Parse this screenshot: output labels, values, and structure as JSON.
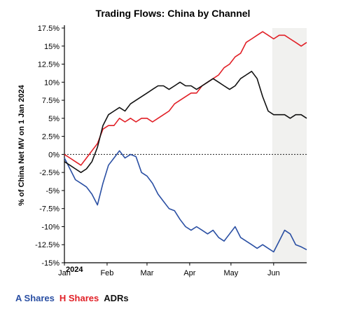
{
  "chart_data": {
    "type": "line",
    "title": "Trading Flows: China by Channel",
    "ylabel": "% of China Net MV on 1 Jan 2024",
    "xlabel": "",
    "year_note": "2024",
    "x_ticks": [
      "Jan",
      "Feb",
      "Mar",
      "Apr",
      "May",
      "Jun"
    ],
    "y_ticks": [
      "17.5%",
      "15%",
      "12.5%",
      "10%",
      "7.5%",
      "5%",
      "2.5%",
      "0%",
      "-2.5%",
      "-5%",
      "-7.5%",
      "-10%",
      "-12.5%",
      "-15%"
    ],
    "ylim": [
      -15,
      17.5
    ],
    "xlim": [
      "2024-01-01",
      "2024-06-25"
    ],
    "shaded_from": "2024-05-31",
    "zero_line": "dashed",
    "x": [
      "2024-01-01",
      "2024-01-05",
      "2024-01-09",
      "2024-01-13",
      "2024-01-17",
      "2024-01-21",
      "2024-01-25",
      "2024-01-29",
      "2024-02-02",
      "2024-02-06",
      "2024-02-10",
      "2024-02-14",
      "2024-02-18",
      "2024-02-22",
      "2024-02-26",
      "2024-03-01",
      "2024-03-05",
      "2024-03-09",
      "2024-03-13",
      "2024-03-17",
      "2024-03-21",
      "2024-03-25",
      "2024-03-29",
      "2024-04-02",
      "2024-04-06",
      "2024-04-10",
      "2024-04-14",
      "2024-04-18",
      "2024-04-22",
      "2024-04-26",
      "2024-04-30",
      "2024-05-04",
      "2024-05-08",
      "2024-05-12",
      "2024-05-16",
      "2024-05-20",
      "2024-05-24",
      "2024-05-28",
      "2024-06-01",
      "2024-06-05",
      "2024-06-09",
      "2024-06-13",
      "2024-06-17",
      "2024-06-21",
      "2024-06-25"
    ],
    "series": [
      {
        "name": "A Shares",
        "color": "#2a4fa3",
        "values": [
          -0.5,
          -2.0,
          -3.5,
          -4.0,
          -4.5,
          -5.5,
          -7.0,
          -4.0,
          -1.5,
          -0.5,
          0.5,
          -0.5,
          0.0,
          -0.3,
          -2.5,
          -3.0,
          -4.0,
          -5.5,
          -6.5,
          -7.5,
          -7.8,
          -9.0,
          -10.0,
          -10.5,
          -10.0,
          -10.5,
          -11.0,
          -10.5,
          -11.5,
          -12.0,
          -11.0,
          -10.0,
          -11.5,
          -12.0,
          -12.5,
          -13.0,
          -12.5,
          -13.0,
          -13.5,
          -12.0,
          -10.5,
          -11.0,
          -12.5,
          -12.8,
          -13.2
        ]
      },
      {
        "name": "H Shares",
        "color": "#e11f26",
        "values": [
          0.0,
          -0.5,
          -1.0,
          -1.5,
          -0.5,
          0.5,
          1.5,
          3.5,
          4.0,
          4.0,
          5.0,
          4.5,
          5.0,
          4.5,
          5.0,
          5.0,
          4.5,
          5.0,
          5.5,
          6.0,
          7.0,
          7.5,
          8.0,
          8.5,
          8.5,
          9.5,
          10.0,
          10.5,
          11.0,
          12.0,
          12.5,
          13.5,
          14.0,
          15.5,
          16.0,
          16.5,
          17.0,
          16.5,
          16.0,
          16.5,
          16.5,
          16.0,
          15.5,
          15.0,
          15.5
        ]
      },
      {
        "name": "ADRs",
        "color": "#111111",
        "values": [
          -1.0,
          -1.5,
          -2.0,
          -2.5,
          -2.0,
          -1.0,
          1.0,
          4.0,
          5.5,
          6.0,
          6.5,
          6.0,
          7.0,
          7.5,
          8.0,
          8.5,
          9.0,
          9.5,
          9.5,
          9.0,
          9.5,
          10.0,
          9.5,
          9.5,
          9.0,
          9.5,
          10.0,
          10.5,
          10.0,
          9.5,
          9.0,
          9.5,
          10.5,
          11.0,
          11.5,
          10.5,
          8.0,
          6.0,
          5.5,
          5.5,
          5.5,
          5.0,
          5.5,
          5.5,
          5.0
        ]
      }
    ],
    "legend": {
      "placement": "bottom-left",
      "entries": [
        "A Shares",
        "H Shares",
        "ADRs"
      ]
    },
    "grid": false
  }
}
